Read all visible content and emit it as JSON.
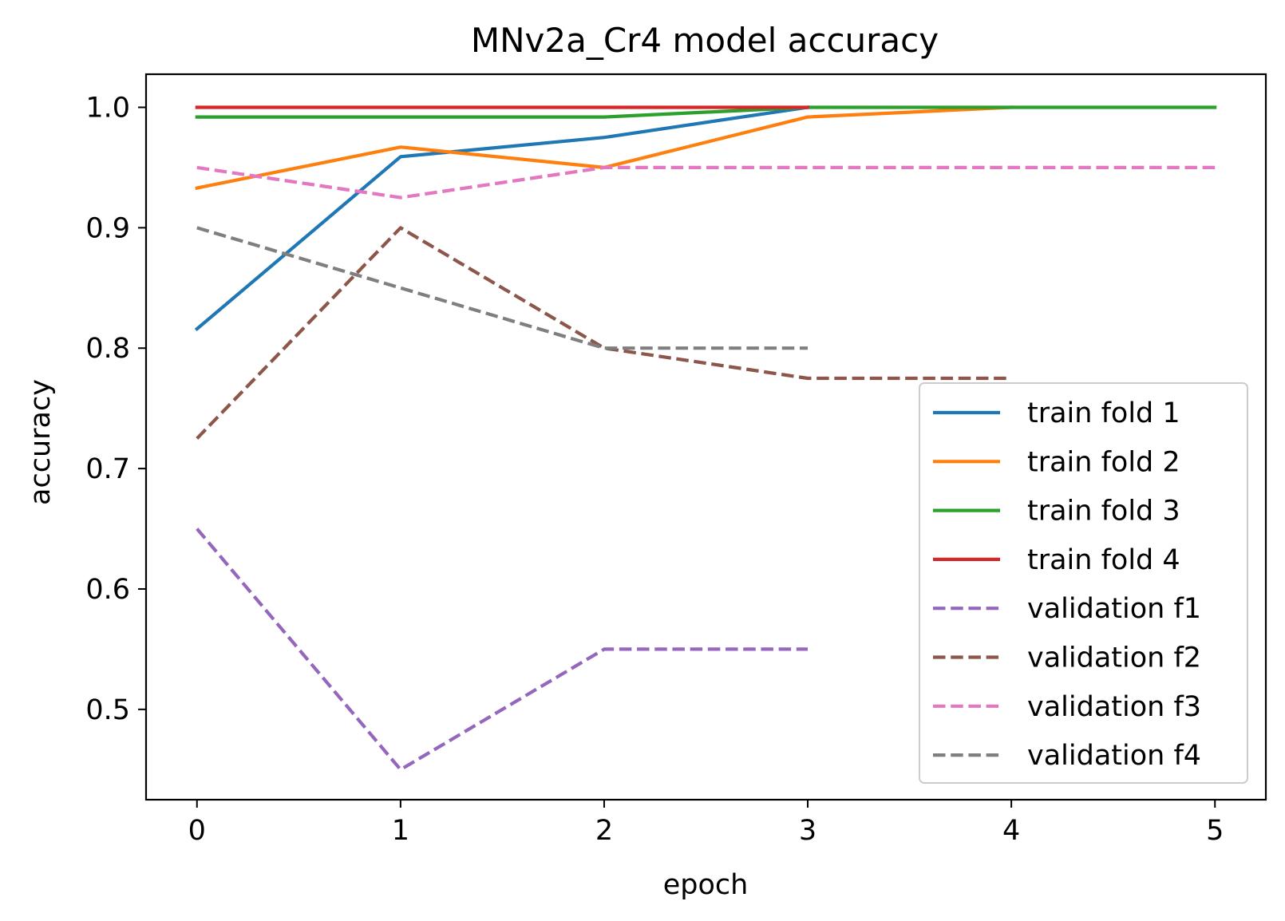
{
  "chart_data": {
    "type": "line",
    "title": "MNv2a_Cr4 model accuracy",
    "xlabel": "epoch",
    "ylabel": "accuracy",
    "xlim": [
      -0.25,
      5.25
    ],
    "ylim": [
      0.425,
      1.0275
    ],
    "xticks": [
      0,
      1,
      2,
      3,
      4,
      5
    ],
    "yticks": [
      0.5,
      0.6,
      0.7,
      0.8,
      0.9,
      1.0
    ],
    "xtick_labels": [
      "0",
      "1",
      "2",
      "3",
      "4",
      "5"
    ],
    "ytick_labels": [
      "0.5",
      "0.6",
      "0.7",
      "0.8",
      "0.9",
      "1.0"
    ],
    "grid": false,
    "legend_position": "lower-right",
    "series": [
      {
        "name": "train fold 1",
        "color": "#1f77b4",
        "dashed": false,
        "x": [
          0,
          1,
          2,
          3
        ],
        "y": [
          0.816,
          0.959,
          0.975,
          1.0
        ]
      },
      {
        "name": "train fold 2",
        "color": "#ff7f0e",
        "dashed": false,
        "x": [
          0,
          1,
          2,
          3,
          4
        ],
        "y": [
          0.933,
          0.967,
          0.95,
          0.992,
          1.0
        ]
      },
      {
        "name": "train fold 3",
        "color": "#2ca02c",
        "dashed": false,
        "x": [
          0,
          1,
          2,
          3,
          4,
          5
        ],
        "y": [
          0.992,
          0.992,
          0.992,
          1.0,
          1.0,
          1.0
        ]
      },
      {
        "name": "train fold 4",
        "color": "#d62728",
        "dashed": false,
        "x": [
          0,
          1,
          2,
          3
        ],
        "y": [
          1.0,
          1.0,
          1.0,
          1.0
        ]
      },
      {
        "name": "validation f1",
        "color": "#9467bd",
        "dashed": true,
        "x": [
          0,
          1,
          2,
          3
        ],
        "y": [
          0.65,
          0.45,
          0.55,
          0.55
        ]
      },
      {
        "name": "validation f2",
        "color": "#8c564b",
        "dashed": true,
        "x": [
          0,
          1,
          2,
          3,
          4
        ],
        "y": [
          0.725,
          0.9,
          0.8,
          0.775,
          0.775
        ]
      },
      {
        "name": "validation f3",
        "color": "#e377c2",
        "dashed": true,
        "x": [
          0,
          1,
          2,
          3,
          4,
          5
        ],
        "y": [
          0.95,
          0.925,
          0.95,
          0.95,
          0.95,
          0.95
        ]
      },
      {
        "name": "validation f4",
        "color": "#7f7f7f",
        "dashed": true,
        "x": [
          0,
          1,
          2,
          3
        ],
        "y": [
          0.9,
          0.85,
          0.8,
          0.8
        ]
      }
    ]
  }
}
